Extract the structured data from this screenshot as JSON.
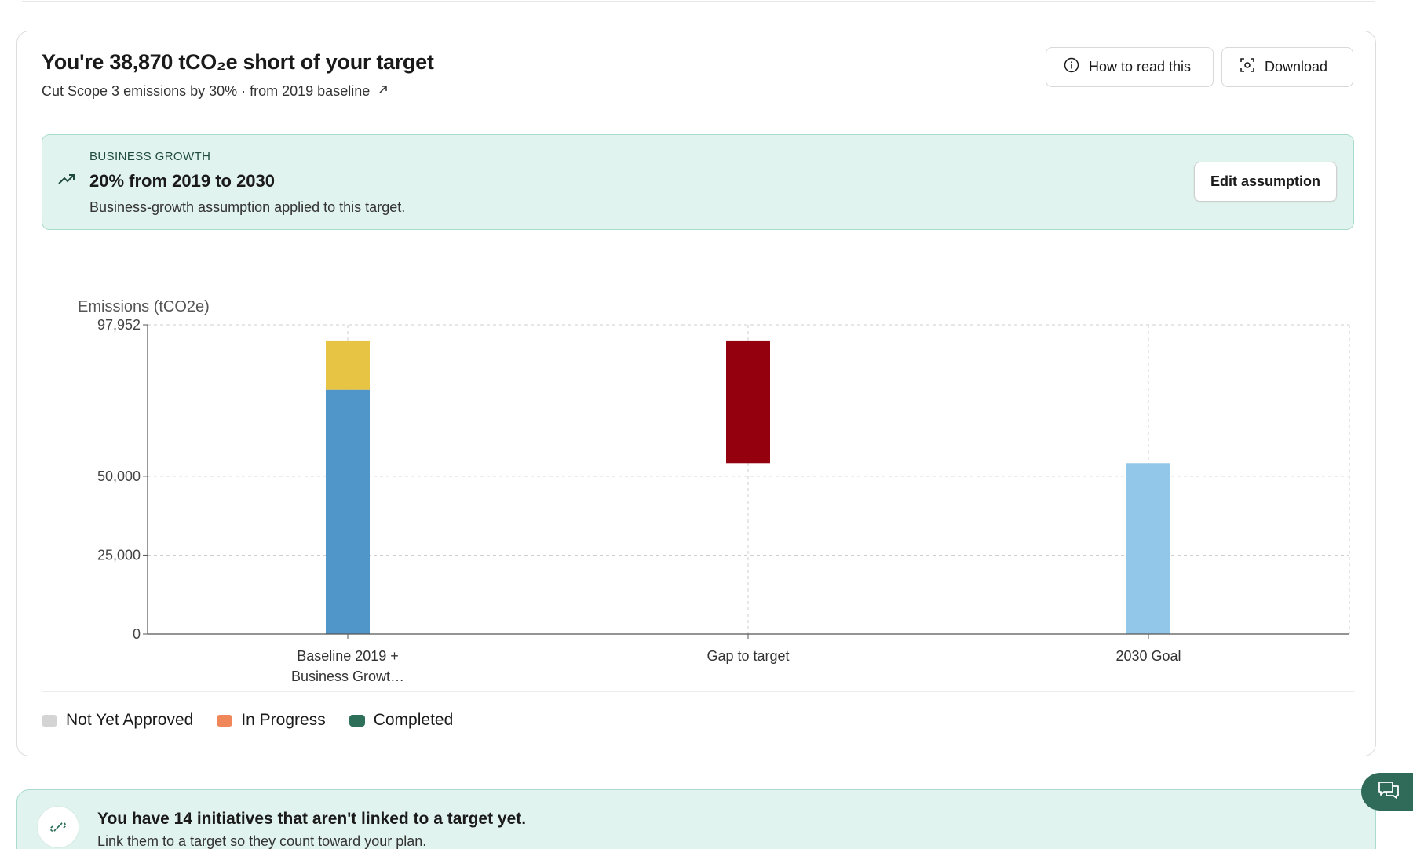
{
  "header": {
    "title": "You're 38,870 tCO₂e short of your target",
    "subtitle": "Cut Scope 3 emissions by 30% · from 2019 baseline",
    "how_to_read_label": "How to read this",
    "download_label": "Download"
  },
  "growth": {
    "kicker": "BUSINESS GROWTH",
    "headline": "20% from 2019 to 2030",
    "description": "Business-growth assumption applied to this target.",
    "edit_label": "Edit assumption"
  },
  "chart_data": {
    "type": "bar",
    "ylabel": "Emissions (tCO2e)",
    "ylim": [
      0,
      97952
    ],
    "yticks": [
      0,
      25000,
      50000,
      97952
    ],
    "ytick_labels": [
      "0",
      "25,000",
      "50,000",
      "97,952"
    ],
    "categories": [
      "Baseline 2019 + Business Growt…",
      "Gap to target",
      "2030 Goal"
    ],
    "category_lines": [
      [
        "Baseline 2019 +",
        "Business Growt…"
      ],
      [
        "Gap to target"
      ],
      [
        "2030 Goal"
      ]
    ],
    "bars": [
      {
        "category": 0,
        "segments": [
          {
            "from": 0,
            "to": 77400,
            "color": "#5096c8"
          },
          {
            "from": 77400,
            "to": 93000,
            "color": "#e8c444"
          }
        ]
      },
      {
        "category": 1,
        "segments": [
          {
            "from": 54130,
            "to": 93000,
            "color": "#94000d"
          }
        ]
      },
      {
        "category": 2,
        "segments": [
          {
            "from": 0,
            "to": 54130,
            "color": "#93c7e9"
          }
        ]
      }
    ],
    "grid": true
  },
  "legend": {
    "items": [
      {
        "label": "Not Yet Approved",
        "color": "#d4d4d4"
      },
      {
        "label": "In Progress",
        "color": "#f0875a"
      },
      {
        "label": "Completed",
        "color": "#2e6f59"
      }
    ]
  },
  "banner": {
    "title": "You have 14 initiatives that aren't linked to a target yet.",
    "subtitle": "Link them to a target so they count toward your plan."
  },
  "icons": {
    "info": "info-icon",
    "download": "screenshot-icon",
    "trend": "trending-up-icon",
    "link": "link-broken-icon",
    "chat": "chat-icon"
  }
}
